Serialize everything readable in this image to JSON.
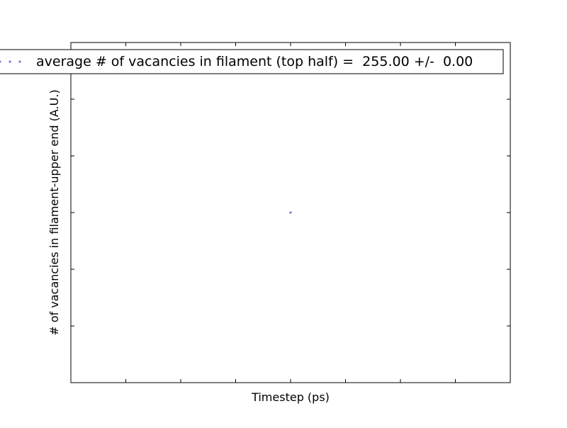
{
  "chart_data": {
    "type": "scatter",
    "title": "",
    "xlabel": "Timestep (ps)",
    "ylabel": "# of vacancies in filament-upper end (A.U.)",
    "x": [
      0
    ],
    "y": [
      255
    ],
    "xlim": [
      -1,
      1
    ],
    "ylim": [
      254.5,
      255.5
    ],
    "grid": false,
    "legend_position": "top-right",
    "series": [
      {
        "label": "average # of vacancies in filament (top half) =  255.00 +/-  0.00",
        "color": "#7b7bd0",
        "x": [
          0
        ],
        "y": [
          255
        ]
      }
    ]
  }
}
